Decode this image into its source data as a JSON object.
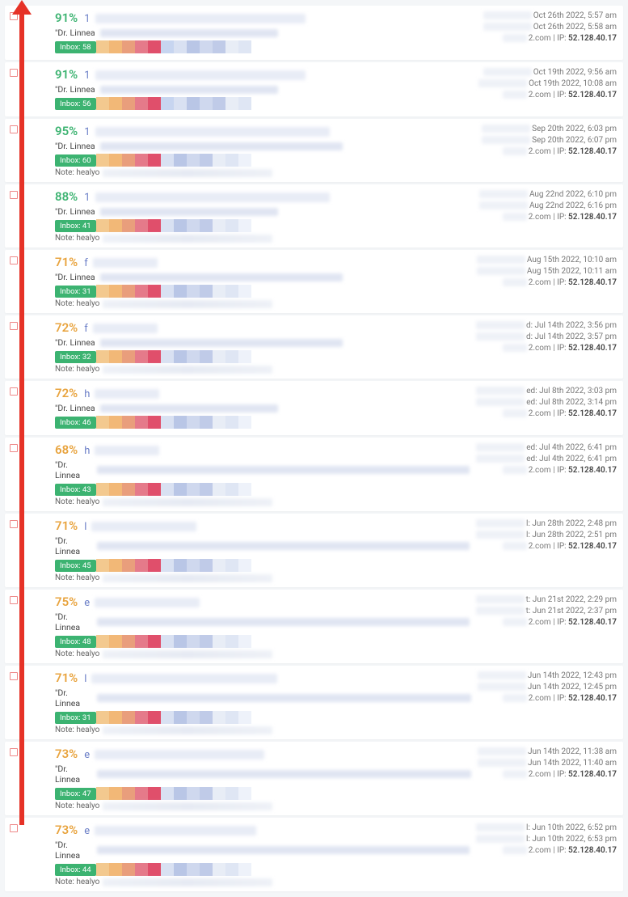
{
  "arrow_color": "#e63227",
  "rows": [
    {
      "pct": "91%",
      "pct_class": "green",
      "letter": "1",
      "from": "\"Dr. Linnea",
      "badge": "Inbox: 58",
      "subj_w": 260,
      "from_w": 220,
      "colors": [
        "#f3c98f",
        "#f2b877",
        "#e99e7c",
        "#e57a8a",
        "#e04f6b",
        "#c7d5f0",
        "#d9e1f2",
        "#b9c6e6",
        "#cfd8ee",
        "#c0cbe8",
        "#e8edf6",
        "#dfe6f4"
      ],
      "has_note": false,
      "r1": "Oct 26th 2022, 5:57 am",
      "r2": "Oct 26th 2022, 5:58 am",
      "r3a": "2.com",
      "r3b": "52.128.40.17"
    },
    {
      "pct": "91%",
      "pct_class": "green",
      "letter": "1",
      "from": "\"Dr. Linnea",
      "badge": "Inbox: 56",
      "subj_w": 260,
      "from_w": 220,
      "colors": [
        "#f3c98f",
        "#f2b877",
        "#e99e7c",
        "#e57a8a",
        "#e04f6b",
        "#c7d5f0",
        "#d9e1f2",
        "#b9c6e6",
        "#cfd8ee",
        "#c0cbe8",
        "#e8edf6",
        "#dfe6f4"
      ],
      "has_note": false,
      "r1": "Oct 19th 2022, 9:56 am",
      "r2": "Oct 19th 2022, 10:08 am",
      "r3a": "2.com",
      "r3b": "52.128.40.17"
    },
    {
      "pct": "95%",
      "pct_class": "green",
      "letter": "1",
      "from": "\"Dr. Linnea",
      "badge": "Inbox: 60",
      "subj_w": 290,
      "from_w": 300,
      "colors": [
        "#f3c98f",
        "#f2b877",
        "#e99e7c",
        "#e57a8a",
        "#e04f6b",
        "#d9e1f2",
        "#b9c6e6",
        "#cfd8ee",
        "#c0cbe8",
        "#e8edf6",
        "#dfe6f4",
        "#eef2fa"
      ],
      "has_note": true,
      "note": "Note: healyo",
      "r1": "Sep 20th 2022, 6:03 pm",
      "r2": "Sep 20th 2022, 6:07 pm",
      "r3a": "2.com",
      "r3b": "52.128.40.17"
    },
    {
      "pct": "88%",
      "pct_class": "green",
      "letter": "1",
      "from": "\"Dr. Linnea",
      "badge": "Inbox: 41",
      "subj_w": 290,
      "from_w": 220,
      "colors": [
        "#f3c98f",
        "#f2b877",
        "#e99e7c",
        "#e57a8a",
        "#e04f6b",
        "#d9e1f2",
        "#b9c6e6",
        "#cfd8ee",
        "#c0cbe8",
        "#e8edf6",
        "#dfe6f4",
        "#eef2fa"
      ],
      "has_note": true,
      "note": "Note: healyo",
      "r1": "Aug 22nd 2022, 6:10 pm",
      "r2": "Aug 22nd 2022, 6:16 pm",
      "r3a": "2.com",
      "r3b": "52.128.40.17"
    },
    {
      "pct": "71%",
      "pct_class": "orange",
      "letter": "f",
      "from": "\"Dr. Linnea",
      "badge": "Inbox: 31",
      "subj_w": 80,
      "from_w": 300,
      "colors": [
        "#f3c98f",
        "#f2b877",
        "#e99e7c",
        "#e57a8a",
        "#e04f6b",
        "#d9e1f2",
        "#b9c6e6",
        "#cfd8ee",
        "#c0cbe8",
        "#e8edf6",
        "#dfe6f4",
        "#eef2fa"
      ],
      "has_note": true,
      "note": "Note: healyo",
      "r1": "Aug 15th 2022, 10:10 am",
      "r2": "Aug 15th 2022, 10:11 am",
      "r3a": "2.com",
      "r3b": "52.128.40.17"
    },
    {
      "pct": "72%",
      "pct_class": "orange",
      "letter": "f",
      "from": "\"Dr. Linnea",
      "badge": "Inbox: 32",
      "subj_w": 80,
      "from_w": 300,
      "colors": [
        "#f3c98f",
        "#f2b877",
        "#e99e7c",
        "#e57a8a",
        "#e04f6b",
        "#d9e1f2",
        "#b9c6e6",
        "#cfd8ee",
        "#c0cbe8",
        "#e8edf6",
        "#dfe6f4",
        "#eef2fa"
      ],
      "has_note": true,
      "note": "Note: healyo",
      "r1": "d: Jul 14th 2022, 3:56 pm",
      "r2": "d: Jul 14th 2022, 3:57 pm",
      "r3a": "2.com",
      "r3b": "52.128.40.17"
    },
    {
      "pct": "72%",
      "pct_class": "orange",
      "letter": "h",
      "from": "\"Dr. Linnea",
      "badge": "Inbox: 46",
      "subj_w": 80,
      "from_w": 220,
      "colors": [
        "#f3c98f",
        "#f2b877",
        "#e99e7c",
        "#e57a8a",
        "#e04f6b",
        "#d9e1f2",
        "#b9c6e6",
        "#cfd8ee",
        "#c0cbe8",
        "#e8edf6",
        "#dfe6f4",
        "#eef2fa"
      ],
      "has_note": false,
      "r1": "ed: Jul 8th 2022, 3:03 pm",
      "r2": "ed: Jul 8th 2022, 3:14 pm",
      "r3a": "2.com",
      "r3b": "52.128.40.17"
    },
    {
      "pct": "68%",
      "pct_class": "orange",
      "letter": "h",
      "from": "\"Dr. Linnea",
      "badge": "Inbox: 43",
      "subj_w": 80,
      "from_w": 500,
      "colors": [
        "#f3c98f",
        "#f2b877",
        "#e99e7c",
        "#e57a8a",
        "#e04f6b",
        "#d9e1f2",
        "#b9c6e6",
        "#cfd8ee",
        "#c0cbe8",
        "#e8edf6",
        "#dfe6f4",
        "#eef2fa"
      ],
      "has_note": true,
      "note": "Note: healyo",
      "r1": "ed: Jul 4th 2022, 6:41 pm",
      "r2": "ed: Jul 4th 2022, 6:41 pm",
      "r3a": "2.com",
      "r3b": "52.128.40.17"
    },
    {
      "pct": "71%",
      "pct_class": "orange",
      "letter": "l",
      "from": "\"Dr. Linnea",
      "badge": "Inbox: 45",
      "subj_w": 130,
      "from_w": 500,
      "colors": [
        "#f3c98f",
        "#f2b877",
        "#e99e7c",
        "#e57a8a",
        "#e04f6b",
        "#d9e1f2",
        "#b9c6e6",
        "#cfd8ee",
        "#c0cbe8",
        "#e8edf6",
        "#dfe6f4",
        "#eef2fa"
      ],
      "has_note": true,
      "note": "Note: healyo",
      "r1": "l: Jun 28th 2022, 2:48 pm",
      "r2": "l: Jun 28th 2022, 2:51 pm",
      "r3a": "2.com",
      "r3b": "52.128.40.17"
    },
    {
      "pct": "75%",
      "pct_class": "orange",
      "letter": "e",
      "from": "\"Dr. Linnea",
      "badge": "Inbox: 48",
      "subj_w": 130,
      "from_w": 500,
      "colors": [
        "#f3c98f",
        "#f2b877",
        "#e99e7c",
        "#e57a8a",
        "#e04f6b",
        "#d9e1f2",
        "#b9c6e6",
        "#cfd8ee",
        "#c0cbe8",
        "#e8edf6",
        "#dfe6f4",
        "#eef2fa"
      ],
      "has_note": true,
      "note": "Note: healyo",
      "r1": "t: Jun 21st 2022, 2:29 pm",
      "r2": "t: Jun 21st 2022, 2:37 pm",
      "r3a": "2.com",
      "r3b": "52.128.40.17"
    },
    {
      "pct": "71%",
      "pct_class": "orange",
      "letter": "l",
      "from": "\"Dr. Linnea",
      "badge": "Inbox: 31",
      "subj_w": 230,
      "from_w": 500,
      "colors": [
        "#f3c98f",
        "#f2b877",
        "#e99e7c",
        "#e57a8a",
        "#e04f6b",
        "#d9e1f2",
        "#b9c6e6",
        "#cfd8ee",
        "#c0cbe8",
        "#e8edf6",
        "#dfe6f4",
        "#eef2fa"
      ],
      "has_note": true,
      "note": "Note: healyo",
      "r1": "Jun 14th 2022, 12:43 pm",
      "r2": "Jun 14th 2022, 12:45 pm",
      "r3a": "2.com",
      "r3b": "52.128.40.17"
    },
    {
      "pct": "73%",
      "pct_class": "orange",
      "letter": "e",
      "from": "\"Dr. Linnea",
      "badge": "Inbox: 47",
      "subj_w": 210,
      "from_w": 500,
      "colors": [
        "#f3c98f",
        "#f2b877",
        "#e99e7c",
        "#e57a8a",
        "#e04f6b",
        "#d9e1f2",
        "#b9c6e6",
        "#cfd8ee",
        "#c0cbe8",
        "#e8edf6",
        "#dfe6f4",
        "#eef2fa"
      ],
      "has_note": true,
      "note": "Note: healyo",
      "r1": "Jun 14th 2022, 11:38 am",
      "r2": "Jun 14th 2022, 11:40 am",
      "r3a": "2.com",
      "r3b": "52.128.40.17"
    },
    {
      "pct": "73%",
      "pct_class": "orange",
      "letter": "e",
      "from": "\"Dr. Linnea",
      "badge": "Inbox: 44",
      "subj_w": 200,
      "from_w": 500,
      "colors": [
        "#f3c98f",
        "#f2b877",
        "#e99e7c",
        "#e57a8a",
        "#e04f6b",
        "#d9e1f2",
        "#b9c6e6",
        "#cfd8ee",
        "#c0cbe8",
        "#e8edf6",
        "#dfe6f4",
        "#eef2fa"
      ],
      "has_note": true,
      "note": "Note: healyo",
      "r1": "l: Jun 10th 2022, 6:52 pm",
      "r2": "l: Jun 10th 2022, 6:53 pm",
      "r3a": "2.com",
      "r3b": "52.128.40.17"
    }
  ]
}
